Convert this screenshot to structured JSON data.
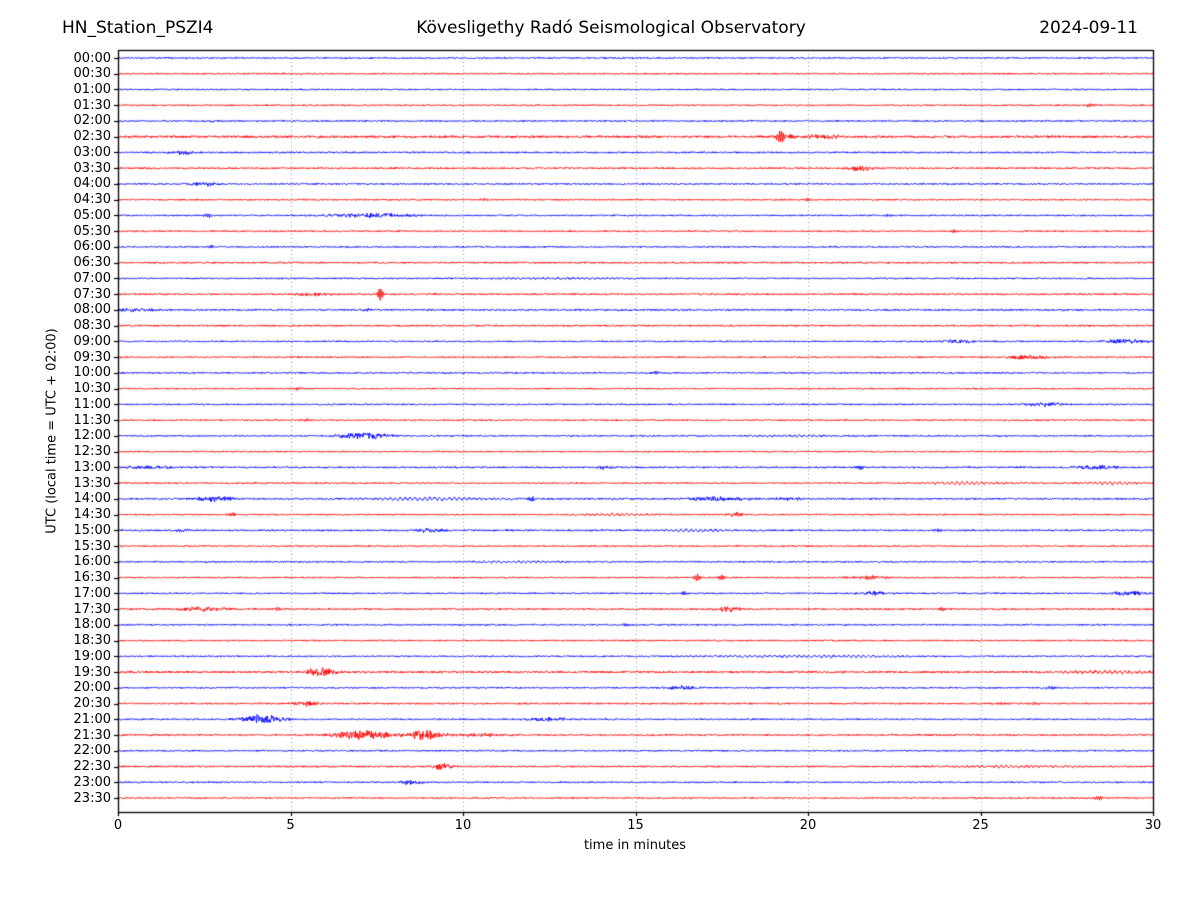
{
  "header": {
    "station": "HN_Station_PSZI4",
    "observatory": "Kövesligethy Radó Seismological Observatory",
    "date": "2024-09-11"
  },
  "colors": {
    "trace_blue": "#0000ff",
    "trace_red": "#ff0000",
    "grid": "#999999",
    "axis": "#000000",
    "background": "#ffffff"
  },
  "chart_data": {
    "type": "line",
    "subtype": "helicorder-day-plot",
    "title": "Kövesligethy Radó Seismological Observatory",
    "station": "HN_Station_PSZI4",
    "date": "2024-09-11",
    "xlabel": "time in minutes",
    "ylabel": "UTC (local time = UTC + 02:00)",
    "xlim": [
      0,
      30
    ],
    "xticks": [
      0,
      5,
      10,
      15,
      20,
      25,
      30
    ],
    "grid_minutes": [
      5,
      10,
      15,
      20,
      25
    ],
    "grid_style": "vertical-dotted",
    "minutes_per_row": 30,
    "legend": "none",
    "event_note": "events: m=start-relative minute, w=envelope width in minutes, a=peak amplitude px, t=type",
    "rows": [
      {
        "label": "00:00",
        "color": "#0000ff",
        "noise": 0.7,
        "events": []
      },
      {
        "label": "00:30",
        "color": "#ff0000",
        "noise": 0.7,
        "events": []
      },
      {
        "label": "01:00",
        "color": "#0000ff",
        "noise": 0.7,
        "events": []
      },
      {
        "label": "01:30",
        "color": "#ff0000",
        "noise": 0.7,
        "events": [
          {
            "m": 28.2,
            "w": 0.15,
            "a": 1.6,
            "t": "spike"
          }
        ]
      },
      {
        "label": "02:00",
        "color": "#0000ff",
        "noise": 0.7,
        "events": [
          {
            "m": 2.7,
            "w": 0.2,
            "a": 1.2,
            "t": "burst"
          }
        ]
      },
      {
        "label": "02:30",
        "color": "#ff0000",
        "noise": 1.1,
        "events": [
          {
            "m": 19.2,
            "w": 0.08,
            "a": 7,
            "t": "spike"
          },
          {
            "m": 19.4,
            "w": 0.3,
            "a": 1.8,
            "t": "burst"
          },
          {
            "m": 20.4,
            "w": 0.4,
            "a": 1.8,
            "t": "burst"
          }
        ]
      },
      {
        "label": "03:00",
        "color": "#0000ff",
        "noise": 0.8,
        "events": [
          {
            "m": 1.9,
            "w": 0.25,
            "a": 1.8,
            "t": "burst"
          }
        ]
      },
      {
        "label": "03:30",
        "color": "#ff0000",
        "noise": 0.8,
        "events": [
          {
            "m": 21.5,
            "w": 0.3,
            "a": 2.5,
            "t": "burst"
          }
        ]
      },
      {
        "label": "04:00",
        "color": "#0000ff",
        "noise": 0.7,
        "events": [
          {
            "m": 2.5,
            "w": 0.3,
            "a": 2.2,
            "t": "burst"
          }
        ]
      },
      {
        "label": "04:30",
        "color": "#ff0000",
        "noise": 0.7,
        "events": [
          {
            "m": 10.6,
            "w": 0.08,
            "a": 1.2,
            "t": "spike"
          },
          {
            "m": 20,
            "w": 0.08,
            "a": 1.4,
            "t": "spike"
          }
        ]
      },
      {
        "label": "05:00",
        "color": "#0000ff",
        "noise": 0.7,
        "events": [
          {
            "m": 2.6,
            "w": 0.08,
            "a": 2,
            "t": "spike"
          },
          {
            "m": 7.3,
            "w": 0.9,
            "a": 2.1,
            "t": "burst"
          },
          {
            "m": 22.3,
            "w": 0.08,
            "a": 1.4,
            "t": "spike"
          }
        ]
      },
      {
        "label": "05:30",
        "color": "#ff0000",
        "noise": 0.7,
        "events": [
          {
            "m": 24.2,
            "w": 0.08,
            "a": 1.4,
            "t": "spike"
          }
        ]
      },
      {
        "label": "06:00",
        "color": "#0000ff",
        "noise": 0.7,
        "events": [
          {
            "m": 2.7,
            "w": 0.08,
            "a": 1.4,
            "t": "spike"
          }
        ]
      },
      {
        "label": "06:30",
        "color": "#ff0000",
        "noise": 0.8,
        "events": []
      },
      {
        "label": "07:00",
        "color": "#0000ff",
        "noise": 0.7,
        "events": [
          {
            "m": 13,
            "w": 2,
            "a": 0.5,
            "t": "wave"
          }
        ]
      },
      {
        "label": "07:30",
        "color": "#ff0000",
        "noise": 0.8,
        "events": [
          {
            "m": 5.6,
            "w": 0.35,
            "a": 1.6,
            "t": "burst"
          },
          {
            "m": 7.6,
            "w": 0.06,
            "a": 6.5,
            "t": "spike"
          }
        ]
      },
      {
        "label": "08:00",
        "color": "#0000ff",
        "noise": 0.8,
        "events": [
          {
            "m": 0.6,
            "w": 0.5,
            "a": 1.7,
            "t": "burst"
          },
          {
            "m": 7.2,
            "w": 0.15,
            "a": 1.3,
            "t": "burst"
          }
        ]
      },
      {
        "label": "08:30",
        "color": "#ff0000",
        "noise": 0.8,
        "events": []
      },
      {
        "label": "09:00",
        "color": "#0000ff",
        "noise": 0.7,
        "events": [
          {
            "m": 24.4,
            "w": 0.35,
            "a": 1.8,
            "t": "burst"
          },
          {
            "m": 29.2,
            "w": 0.45,
            "a": 2.4,
            "t": "burst"
          }
        ]
      },
      {
        "label": "09:30",
        "color": "#ff0000",
        "noise": 0.7,
        "events": [
          {
            "m": 26.4,
            "w": 0.45,
            "a": 2.2,
            "t": "burst"
          }
        ]
      },
      {
        "label": "10:00",
        "color": "#0000ff",
        "noise": 0.7,
        "events": [
          {
            "m": 15.6,
            "w": 0.08,
            "a": 1.5,
            "t": "spike"
          }
        ]
      },
      {
        "label": "10:30",
        "color": "#ff0000",
        "noise": 0.7,
        "events": [
          {
            "m": 5.2,
            "w": 0.08,
            "a": 1.3,
            "t": "spike"
          }
        ]
      },
      {
        "label": "11:00",
        "color": "#0000ff",
        "noise": 0.7,
        "events": [
          {
            "m": 26.9,
            "w": 0.35,
            "a": 2.2,
            "t": "burst"
          }
        ]
      },
      {
        "label": "11:30",
        "color": "#ff0000",
        "noise": 0.7,
        "events": [
          {
            "m": 5.5,
            "w": 0.08,
            "a": 1.2,
            "t": "spike"
          }
        ]
      },
      {
        "label": "12:00",
        "color": "#0000ff",
        "noise": 0.7,
        "events": [
          {
            "m": 7.1,
            "w": 0.5,
            "a": 3.5,
            "t": "burst"
          },
          {
            "m": 19.7,
            "w": 0.8,
            "a": 0.8,
            "t": "wave"
          }
        ]
      },
      {
        "label": "12:30",
        "color": "#ff0000",
        "noise": 0.7,
        "events": []
      },
      {
        "label": "13:00",
        "color": "#0000ff",
        "noise": 0.8,
        "events": [
          {
            "m": 0.9,
            "w": 0.7,
            "a": 1.3,
            "t": "burst"
          },
          {
            "m": 14.1,
            "w": 0.2,
            "a": 1.5,
            "t": "burst"
          },
          {
            "m": 21.5,
            "w": 0.08,
            "a": 1.8,
            "t": "spike"
          },
          {
            "m": 28.4,
            "w": 0.4,
            "a": 2.2,
            "t": "burst"
          }
        ]
      },
      {
        "label": "13:30",
        "color": "#ff0000",
        "noise": 0.7,
        "events": [
          {
            "m": 24.6,
            "w": 0.9,
            "a": 1.3,
            "t": "wave"
          },
          {
            "m": 28.8,
            "w": 0.7,
            "a": 1.2,
            "t": "wave"
          }
        ]
      },
      {
        "label": "14:00",
        "color": "#0000ff",
        "noise": 0.8,
        "events": [
          {
            "m": 2.8,
            "w": 0.45,
            "a": 2.2,
            "t": "burst"
          },
          {
            "m": 9,
            "w": 1.2,
            "a": 1.4,
            "t": "wave"
          },
          {
            "m": 12,
            "w": 0.08,
            "a": 1.8,
            "t": "spike"
          },
          {
            "m": 17.3,
            "w": 0.7,
            "a": 1.9,
            "t": "burst"
          },
          {
            "m": 19.5,
            "w": 0.3,
            "a": 1.3,
            "t": "burst"
          }
        ]
      },
      {
        "label": "14:30",
        "color": "#ff0000",
        "noise": 0.7,
        "events": [
          {
            "m": 3.3,
            "w": 0.08,
            "a": 1.8,
            "t": "spike"
          },
          {
            "m": 14.5,
            "w": 0.8,
            "a": 1,
            "t": "wave"
          },
          {
            "m": 17.9,
            "w": 0.15,
            "a": 2.2,
            "t": "burst"
          }
        ]
      },
      {
        "label": "15:00",
        "color": "#0000ff",
        "noise": 0.8,
        "events": [
          {
            "m": 1.8,
            "w": 0.15,
            "a": 1.6,
            "t": "burst"
          },
          {
            "m": 9,
            "w": 0.3,
            "a": 2.2,
            "t": "burst"
          },
          {
            "m": 16.8,
            "w": 0.8,
            "a": 1.1,
            "t": "wave"
          },
          {
            "m": 23.8,
            "w": 0.08,
            "a": 1.5,
            "t": "spike"
          }
        ]
      },
      {
        "label": "15:30",
        "color": "#ff0000",
        "noise": 0.7,
        "events": []
      },
      {
        "label": "16:00",
        "color": "#0000ff",
        "noise": 0.7,
        "events": [
          {
            "m": 11.5,
            "w": 1,
            "a": 0.8,
            "t": "wave"
          }
        ]
      },
      {
        "label": "16:30",
        "color": "#ff0000",
        "noise": 0.7,
        "events": [
          {
            "m": 16.8,
            "w": 0.07,
            "a": 3.5,
            "t": "spike"
          },
          {
            "m": 17.5,
            "w": 0.07,
            "a": 2.5,
            "t": "spike"
          },
          {
            "m": 21.7,
            "w": 0.5,
            "a": 1.6,
            "t": "burst"
          }
        ]
      },
      {
        "label": "17:00",
        "color": "#0000ff",
        "noise": 0.7,
        "events": [
          {
            "m": 16.4,
            "w": 0.08,
            "a": 1.4,
            "t": "spike"
          },
          {
            "m": 21.9,
            "w": 0.35,
            "a": 1.8,
            "t": "burst"
          },
          {
            "m": 29.3,
            "w": 0.4,
            "a": 2.2,
            "t": "burst"
          }
        ]
      },
      {
        "label": "17:30",
        "color": "#ff0000",
        "noise": 0.8,
        "events": [
          {
            "m": 2.4,
            "w": 0.6,
            "a": 1.7,
            "t": "burst"
          },
          {
            "m": 4.6,
            "w": 0.08,
            "a": 1.3,
            "t": "spike"
          },
          {
            "m": 17.7,
            "w": 0.25,
            "a": 2.2,
            "t": "burst"
          },
          {
            "m": 23.9,
            "w": 0.08,
            "a": 1.5,
            "t": "spike"
          }
        ]
      },
      {
        "label": "18:00",
        "color": "#0000ff",
        "noise": 0.7,
        "events": [
          {
            "m": 14.7,
            "w": 0.08,
            "a": 1.2,
            "t": "spike"
          }
        ]
      },
      {
        "label": "18:30",
        "color": "#ff0000",
        "noise": 0.7,
        "events": []
      },
      {
        "label": "19:00",
        "color": "#0000ff",
        "noise": 0.7,
        "events": [
          {
            "m": 20,
            "w": 2.2,
            "a": 0.9,
            "t": "wave"
          }
        ]
      },
      {
        "label": "19:30",
        "color": "#ff0000",
        "noise": 1,
        "events": [
          {
            "m": 5.9,
            "w": 0.3,
            "a": 4.5,
            "t": "burst"
          },
          {
            "m": 28.8,
            "w": 1,
            "a": 1.1,
            "t": "wave"
          }
        ]
      },
      {
        "label": "20:00",
        "color": "#0000ff",
        "noise": 0.7,
        "events": [
          {
            "m": 16.3,
            "w": 0.35,
            "a": 1.8,
            "t": "burst"
          },
          {
            "m": 27,
            "w": 0.2,
            "a": 1.2,
            "t": "burst"
          }
        ]
      },
      {
        "label": "20:30",
        "color": "#ff0000",
        "noise": 0.8,
        "events": [
          {
            "m": 5.5,
            "w": 0.3,
            "a": 2.2,
            "t": "burst"
          },
          {
            "m": 25.6,
            "w": 0.08,
            "a": 1.2,
            "t": "spike"
          },
          {
            "m": 26.6,
            "w": 0.08,
            "a": 1.1,
            "t": "spike"
          }
        ]
      },
      {
        "label": "21:00",
        "color": "#0000ff",
        "noise": 0.7,
        "events": [
          {
            "m": 4.2,
            "w": 0.45,
            "a": 4.5,
            "t": "burst"
          },
          {
            "m": 12.5,
            "w": 0.5,
            "a": 1.5,
            "t": "burst"
          }
        ]
      },
      {
        "label": "21:30",
        "color": "#ff0000",
        "noise": 0.8,
        "events": [
          {
            "m": 7.1,
            "w": 0.6,
            "a": 4.5,
            "t": "burst"
          },
          {
            "m": 8.9,
            "w": 0.4,
            "a": 4.5,
            "t": "burst"
          },
          {
            "m": 10.5,
            "w": 0.6,
            "a": 1.4,
            "t": "burst"
          }
        ]
      },
      {
        "label": "22:00",
        "color": "#0000ff",
        "noise": 0.7,
        "events": []
      },
      {
        "label": "22:30",
        "color": "#ff0000",
        "noise": 0.8,
        "events": [
          {
            "m": 9.4,
            "w": 0.25,
            "a": 2.8,
            "t": "burst"
          },
          {
            "m": 26,
            "w": 1.5,
            "a": 0.8,
            "t": "wave"
          }
        ]
      },
      {
        "label": "23:00",
        "color": "#0000ff",
        "noise": 0.7,
        "events": [
          {
            "m": 8.5,
            "w": 0.25,
            "a": 2.2,
            "t": "burst"
          }
        ]
      },
      {
        "label": "23:30",
        "color": "#ff0000",
        "noise": 0.7,
        "events": [
          {
            "m": 28.4,
            "w": 0.1,
            "a": 1.8,
            "t": "spike"
          }
        ]
      }
    ]
  }
}
